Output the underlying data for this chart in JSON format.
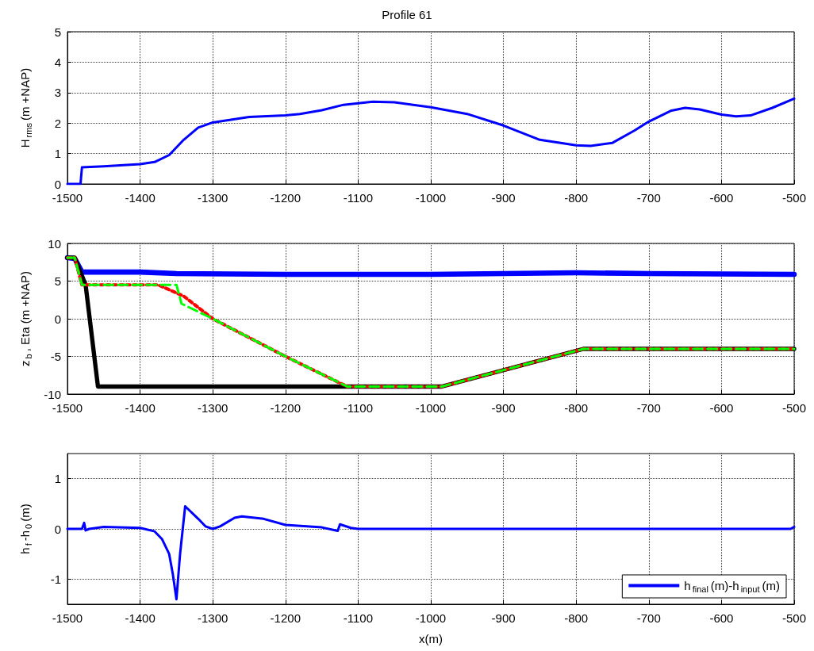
{
  "chart_data": [
    {
      "type": "line",
      "title": "Profile 61",
      "ylabel": "H$_{rms}$(m +NAP)",
      "xlim": [
        -1500,
        -500
      ],
      "xticks": [
        -1500,
        -1400,
        -1300,
        -1200,
        -1100,
        -1000,
        -900,
        -800,
        -700,
        -600,
        -500
      ],
      "ylim": [
        0,
        5
      ],
      "yticks": [
        0,
        1,
        2,
        3,
        4,
        5
      ],
      "grid": true,
      "marker": "none",
      "series": [
        {
          "color": "#0000ff",
          "x": [
            -1500,
            -1482,
            -1480,
            -1450,
            -1400,
            -1380,
            -1360,
            -1340,
            -1320,
            -1300,
            -1250,
            -1200,
            -1180,
            -1150,
            -1120,
            -1080,
            -1050,
            -1000,
            -950,
            -900,
            -850,
            -800,
            -780,
            -750,
            -720,
            -700,
            -670,
            -650,
            -630,
            -600,
            -580,
            -560,
            -530,
            -500
          ],
          "values": [
            0,
            0,
            0.55,
            0.58,
            0.65,
            0.72,
            0.95,
            1.45,
            1.85,
            2.02,
            2.2,
            2.25,
            2.3,
            2.42,
            2.6,
            2.7,
            2.68,
            2.52,
            2.3,
            1.92,
            1.45,
            1.27,
            1.25,
            1.35,
            1.75,
            2.05,
            2.4,
            2.5,
            2.45,
            2.28,
            2.22,
            2.25,
            2.5,
            2.8
          ]
        }
      ]
    },
    {
      "type": "line",
      "ylabel": "z$_{b}$, Eta (m +NAP)",
      "xlim": [
        -1500,
        -500
      ],
      "xticks": [
        -1500,
        -1400,
        -1300,
        -1200,
        -1100,
        -1000,
        -900,
        -800,
        -700,
        -600,
        -500
      ],
      "ylim": [
        -10,
        10
      ],
      "yticks": [
        -10,
        -5,
        0,
        5,
        10
      ],
      "grid": true,
      "marker": "none",
      "series": [
        {
          "color": "#0000ff",
          "line_style": "solid",
          "x": [
            -1500,
            -1490,
            -1480,
            -1400,
            -1350,
            -1200,
            -1000,
            -800,
            -700,
            -500
          ],
          "values": [
            8.1,
            8.0,
            6.2,
            6.2,
            6.0,
            5.9,
            5.9,
            6.1,
            6.0,
            5.9
          ]
        },
        {
          "color": "#000000",
          "line_style": "solid",
          "x": [
            -1500,
            -1490,
            -1475,
            -1458,
            -1120,
            -985,
            -790,
            -500
          ],
          "values": [
            8.1,
            8.1,
            4.5,
            -9,
            -9,
            -9,
            -4,
            -4
          ]
        },
        {
          "color": "#ff0000",
          "line_style": "dotted",
          "x": [
            -1500,
            -1490,
            -1480,
            -1375,
            -1340,
            -1300,
            -1200,
            -1115,
            -985,
            -790,
            -500
          ],
          "values": [
            8.1,
            8.1,
            4.5,
            4.5,
            3,
            0,
            -5,
            -9,
            -9,
            -4,
            -4
          ]
        },
        {
          "color": "#00ff00",
          "line_style": "dashed",
          "x": [
            -1500,
            -1490,
            -1480,
            -1350,
            -1343,
            -1300,
            -1200,
            -1115,
            -985,
            -790,
            -500
          ],
          "values": [
            8.1,
            8.1,
            4.5,
            4.5,
            2,
            0,
            -5,
            -9,
            -9,
            -4,
            -4
          ]
        }
      ]
    },
    {
      "type": "line",
      "ylabel": "h$_{f}$-h$_{0}$(m)",
      "xlabel": "x(m)",
      "xlim": [
        -1500,
        -500
      ],
      "xticks": [
        -1500,
        -1400,
        -1300,
        -1200,
        -1100,
        -1000,
        -900,
        -800,
        -700,
        -600,
        -500
      ],
      "ylim": [
        -1.5,
        1.5
      ],
      "yticks": [
        -1,
        0,
        1
      ],
      "grid": true,
      "marker": "none",
      "legend": "bottom right",
      "series": [
        {
          "name": "h$_{final}$(m)-h$_{input}$(m)",
          "color": "#0000ff",
          "x": [
            -1500,
            -1480,
            -1477,
            -1475,
            -1470,
            -1450,
            -1400,
            -1380,
            -1370,
            -1360,
            -1355,
            -1350,
            -1345,
            -1338,
            -1320,
            -1310,
            -1300,
            -1290,
            -1270,
            -1260,
            -1230,
            -1200,
            -1150,
            -1128,
            -1125,
            -1110,
            -1100,
            -505,
            -500
          ],
          "values": [
            0,
            0,
            0.12,
            -0.03,
            0,
            0.04,
            0.02,
            -0.05,
            -0.2,
            -0.5,
            -0.9,
            -1.4,
            -0.5,
            0.45,
            0.2,
            0.05,
            0,
            0.05,
            0.22,
            0.25,
            0.2,
            0.08,
            0.03,
            -0.04,
            0.09,
            0.02,
            0,
            0,
            0.04
          ]
        }
      ]
    }
  ]
}
